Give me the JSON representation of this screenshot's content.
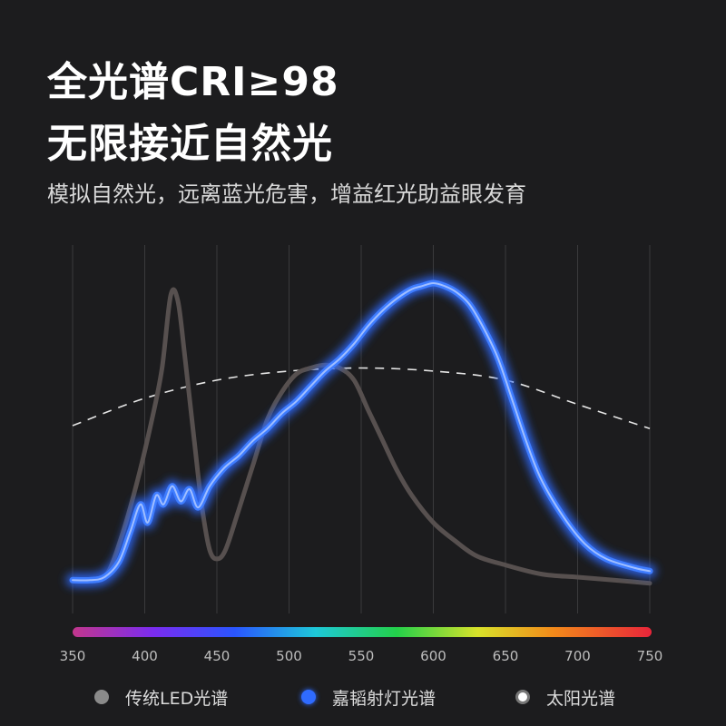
{
  "header": {
    "title_line1": "全光谱CRI≥98",
    "title_line2": "无限接近自然光",
    "subtitle": "模拟自然光，远离蓝光危害，增益红光助益眼发育"
  },
  "legend": [
    {
      "label": "传统LED光谱",
      "color": "#8a8a8a",
      "icon": "gray-dot-icon"
    },
    {
      "label": "嘉韬射灯光谱",
      "color": "#2f6bff",
      "icon": "blue-dot-icon"
    },
    {
      "label": "太阳光谱",
      "color": "#ffffff",
      "icon": "white-dot-icon"
    }
  ],
  "chart_data": {
    "type": "line",
    "title": "",
    "xlabel": "",
    "ylabel": "",
    "x_ticks": [
      "350",
      "400",
      "450",
      "500",
      "550",
      "600",
      "650",
      "700",
      "750"
    ],
    "xlim": [
      350,
      750
    ],
    "ylim": [
      0,
      1
    ],
    "grid": "vertical",
    "spectrum_bar": true,
    "series": [
      {
        "name": "传统LED光谱",
        "color": "#57504f",
        "style": "solid",
        "points": [
          [
            350,
            0.02
          ],
          [
            365,
            0.02
          ],
          [
            375,
            0.05
          ],
          [
            385,
            0.18
          ],
          [
            395,
            0.35
          ],
          [
            405,
            0.55
          ],
          [
            412,
            0.72
          ],
          [
            418,
            0.96
          ],
          [
            423,
            0.94
          ],
          [
            428,
            0.75
          ],
          [
            435,
            0.45
          ],
          [
            440,
            0.25
          ],
          [
            445,
            0.12
          ],
          [
            450,
            0.09
          ],
          [
            456,
            0.12
          ],
          [
            465,
            0.25
          ],
          [
            475,
            0.4
          ],
          [
            485,
            0.55
          ],
          [
            495,
            0.64
          ],
          [
            505,
            0.7
          ],
          [
            515,
            0.72
          ],
          [
            525,
            0.73
          ],
          [
            535,
            0.72
          ],
          [
            545,
            0.68
          ],
          [
            555,
            0.58
          ],
          [
            565,
            0.48
          ],
          [
            575,
            0.38
          ],
          [
            585,
            0.3
          ],
          [
            600,
            0.21
          ],
          [
            615,
            0.15
          ],
          [
            630,
            0.1
          ],
          [
            650,
            0.07
          ],
          [
            675,
            0.04
          ],
          [
            700,
            0.03
          ],
          [
            725,
            0.02
          ],
          [
            750,
            0.01
          ]
        ]
      },
      {
        "name": "嘉韬射灯光谱",
        "color": "#2f6bff",
        "style": "glow",
        "points": [
          [
            350,
            0.02
          ],
          [
            362,
            0.02
          ],
          [
            372,
            0.03
          ],
          [
            382,
            0.08
          ],
          [
            390,
            0.18
          ],
          [
            397,
            0.27
          ],
          [
            402,
            0.21
          ],
          [
            408,
            0.3
          ],
          [
            413,
            0.27
          ],
          [
            419,
            0.33
          ],
          [
            425,
            0.28
          ],
          [
            431,
            0.32
          ],
          [
            437,
            0.26
          ],
          [
            445,
            0.33
          ],
          [
            455,
            0.39
          ],
          [
            465,
            0.43
          ],
          [
            475,
            0.48
          ],
          [
            485,
            0.52
          ],
          [
            495,
            0.57
          ],
          [
            505,
            0.61
          ],
          [
            515,
            0.66
          ],
          [
            525,
            0.71
          ],
          [
            535,
            0.75
          ],
          [
            545,
            0.8
          ],
          [
            555,
            0.86
          ],
          [
            565,
            0.91
          ],
          [
            575,
            0.95
          ],
          [
            585,
            0.98
          ],
          [
            592,
            0.99
          ],
          [
            600,
            1.0
          ],
          [
            608,
            0.99
          ],
          [
            616,
            0.97
          ],
          [
            625,
            0.93
          ],
          [
            635,
            0.85
          ],
          [
            645,
            0.75
          ],
          [
            655,
            0.61
          ],
          [
            665,
            0.47
          ],
          [
            675,
            0.35
          ],
          [
            690,
            0.23
          ],
          [
            705,
            0.14
          ],
          [
            720,
            0.09
          ],
          [
            740,
            0.06
          ],
          [
            750,
            0.05
          ]
        ]
      },
      {
        "name": "太阳光谱",
        "color": "#e6e6e6",
        "style": "dashed",
        "points": [
          [
            350,
            0.53
          ],
          [
            400,
            0.62
          ],
          [
            450,
            0.68
          ],
          [
            500,
            0.71
          ],
          [
            550,
            0.72
          ],
          [
            600,
            0.71
          ],
          [
            650,
            0.68
          ],
          [
            700,
            0.6
          ],
          [
            750,
            0.52
          ]
        ]
      }
    ]
  }
}
